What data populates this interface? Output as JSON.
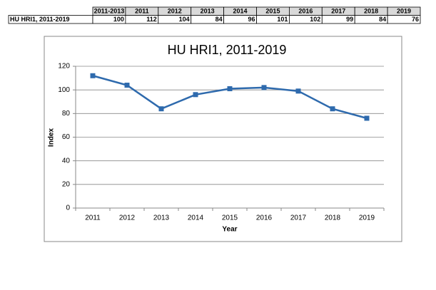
{
  "table": {
    "header": [
      "2011-2013",
      "2011",
      "2012",
      "2013",
      "2014",
      "2015",
      "2016",
      "2017",
      "2018",
      "2019"
    ],
    "rows": [
      {
        "label": "HU HRI1, 2011-2019",
        "values": [
          100,
          112,
          104,
          84,
          96,
          101,
          102,
          99,
          84,
          76
        ]
      }
    ]
  },
  "chart_data": {
    "type": "line",
    "title": "HU HRI1, 2011-2019",
    "categories": [
      "2011",
      "2012",
      "2013",
      "2014",
      "2015",
      "2016",
      "2017",
      "2018",
      "2019"
    ],
    "series": [
      {
        "name": "HU HRI1",
        "color": "#2e6aad",
        "values": [
          112,
          104,
          84,
          96,
          101,
          102,
          99,
          84,
          76
        ]
      }
    ],
    "ylim": [
      0,
      120
    ],
    "yticks": [
      0,
      20,
      40,
      60,
      80,
      100,
      120
    ],
    "grid": true,
    "x_label": "Year",
    "y_label": "Index",
    "legend": false
  }
}
